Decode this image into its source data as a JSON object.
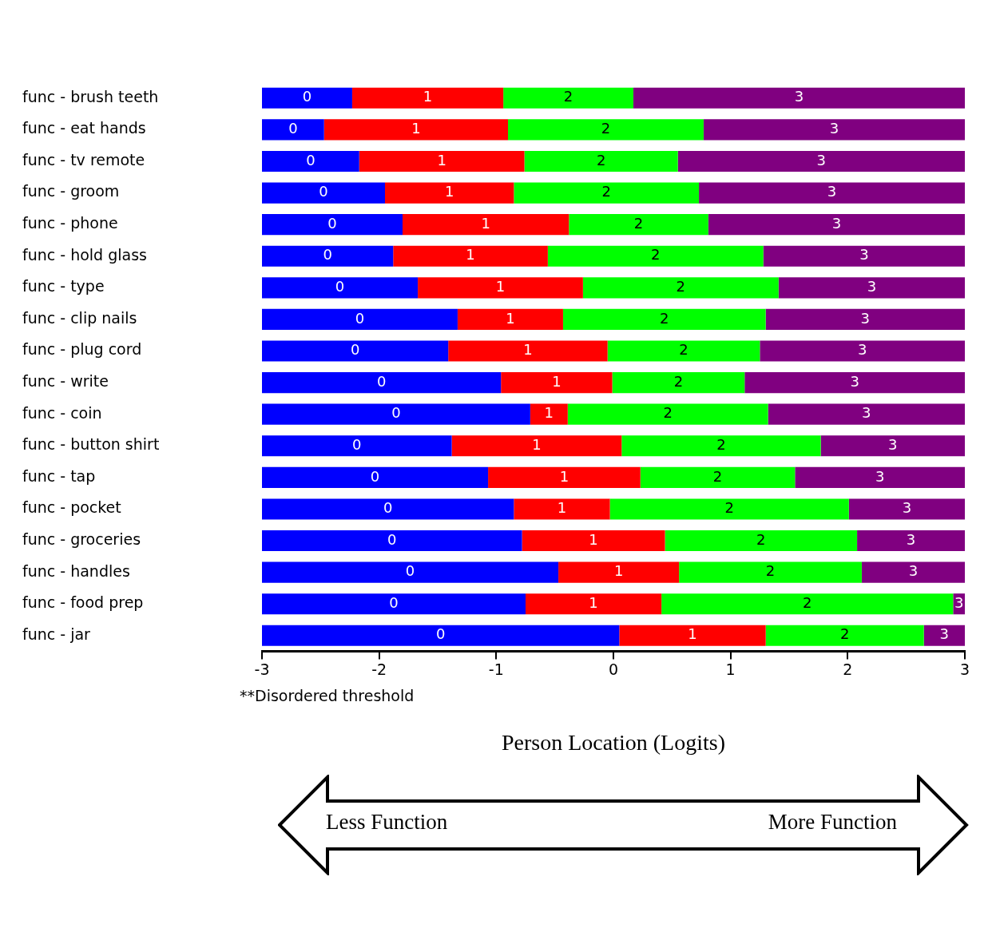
{
  "chart_data": {
    "type": "bar",
    "orientation": "horizontal",
    "categories": [
      "func - brush teeth",
      "func - eat hands",
      "func - tv remote",
      "func - groom",
      "func - phone",
      "func - hold glass",
      "func - type",
      "func - clip nails",
      "func - plug cord",
      "func - write",
      "func - coin",
      "func - button shirt",
      "func - tap",
      "func - pocket",
      "func - groceries",
      "func - handles",
      "func - food prep",
      "func - jar"
    ],
    "series": [
      {
        "name": "0",
        "color": "#0000ff",
        "base": [
          -3,
          -3,
          -3,
          -3,
          -3,
          -3,
          -3,
          -3,
          -3,
          -3,
          -3,
          -3,
          -3,
          -3,
          -3,
          -3,
          -3,
          -3
        ],
        "values": [
          0.77,
          0.53,
          0.83,
          1.05,
          1.2,
          1.12,
          1.33,
          1.67,
          1.59,
          2.04,
          2.29,
          1.62,
          1.93,
          2.15,
          2.22,
          2.53,
          2.25,
          3.05
        ]
      },
      {
        "name": "1",
        "color": "#ff0000",
        "base": [
          -2.23,
          -2.47,
          -2.17,
          -1.95,
          -1.8,
          -1.88,
          -1.67,
          -1.33,
          -1.41,
          -0.96,
          -0.71,
          -1.38,
          -1.07,
          -0.85,
          -0.78,
          -0.47,
          -0.75,
          0.05
        ],
        "values": [
          1.29,
          1.57,
          1.41,
          1.1,
          1.42,
          1.32,
          1.41,
          0.9,
          1.36,
          0.95,
          0.32,
          1.45,
          1.3,
          0.82,
          1.22,
          1.03,
          1.16,
          1.25
        ]
      },
      {
        "name": "2",
        "color": "#00ff00",
        "base": [
          -0.94,
          -0.9,
          -0.76,
          -0.85,
          -0.38,
          -0.56,
          -0.26,
          -0.43,
          -0.05,
          -0.01,
          -0.39,
          0.07,
          0.23,
          -0.03,
          0.44,
          0.56,
          0.41,
          1.3
        ],
        "values": [
          1.11,
          1.67,
          1.31,
          1.58,
          1.19,
          1.84,
          1.67,
          1.73,
          1.3,
          1.13,
          1.71,
          1.7,
          1.32,
          2.04,
          1.64,
          1.56,
          2.49,
          1.35
        ]
      },
      {
        "name": "3",
        "color": "#800080",
        "base": [
          0.17,
          0.77,
          0.55,
          0.73,
          0.81,
          1.28,
          1.41,
          1.3,
          1.25,
          1.12,
          1.32,
          1.77,
          1.55,
          2.01,
          2.08,
          2.12,
          2.9,
          2.65
        ],
        "values": [
          2.83,
          2.23,
          2.45,
          2.27,
          2.19,
          1.72,
          1.59,
          1.7,
          1.75,
          1.88,
          1.68,
          1.23,
          1.45,
          0.99,
          0.92,
          0.88,
          0.1,
          0.35
        ]
      }
    ],
    "xlim": [
      -3,
      3
    ],
    "xticks": [
      -3,
      -2,
      -1,
      0,
      1,
      2,
      3
    ],
    "xlabel": "Person Location (Logits)",
    "annotations": [
      "**Disordered threshold",
      "Less Function",
      "More Function"
    ],
    "grid": false,
    "legend": false
  }
}
